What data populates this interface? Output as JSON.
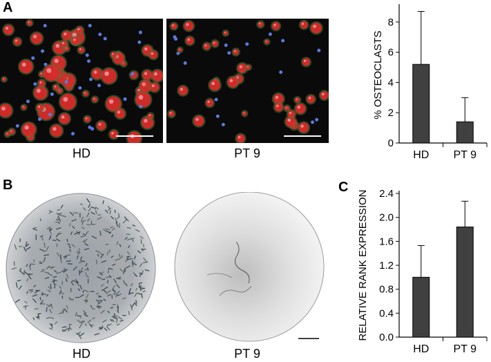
{
  "panels": {
    "a_letter": "A",
    "b_letter": "B",
    "c_letter": "C"
  },
  "images": {
    "micro_hd_label": "HD",
    "micro_pt_label": "PT 9",
    "well_hd_label": "HD",
    "well_pt_label": "PT 9"
  },
  "colors": {
    "bar_fill": "#404040",
    "bar_stroke": "#000000",
    "micro_bg": "#0a0a0a",
    "cell_nucleus": "#e02828",
    "cell_ring": "#3a7a3a",
    "dapi": "#5a7adf"
  },
  "chart_data": [
    {
      "type": "bar",
      "categories": [
        "HD",
        "PT 9"
      ],
      "values": [
        5.2,
        1.4
      ],
      "error_upper": [
        8.7,
        3.0
      ],
      "title": "",
      "xlabel": "",
      "ylabel": "% OSTEOCLASTS",
      "ylim": [
        0,
        9
      ],
      "yticks": [
        0,
        2,
        4,
        6,
        8
      ],
      "ytick_labels": [
        "0",
        "2",
        "4",
        "6",
        "8"
      ],
      "grid": false
    },
    {
      "type": "bar",
      "categories": [
        "HD",
        "PT 9"
      ],
      "values": [
        1.0,
        1.84
      ],
      "error_upper": [
        1.53,
        2.27
      ],
      "title": "",
      "xlabel": "",
      "ylabel": "RELATIVE RANK EXPRESSION",
      "ylim": [
        0,
        2.4
      ],
      "yticks": [
        0,
        0.4,
        0.8,
        1.2,
        1.6,
        2.0,
        2.4
      ],
      "ytick_labels": [
        "0.0",
        "0.4",
        "0.8",
        "1.2",
        "1.6",
        "2.0",
        "2.4"
      ],
      "grid": false
    }
  ]
}
